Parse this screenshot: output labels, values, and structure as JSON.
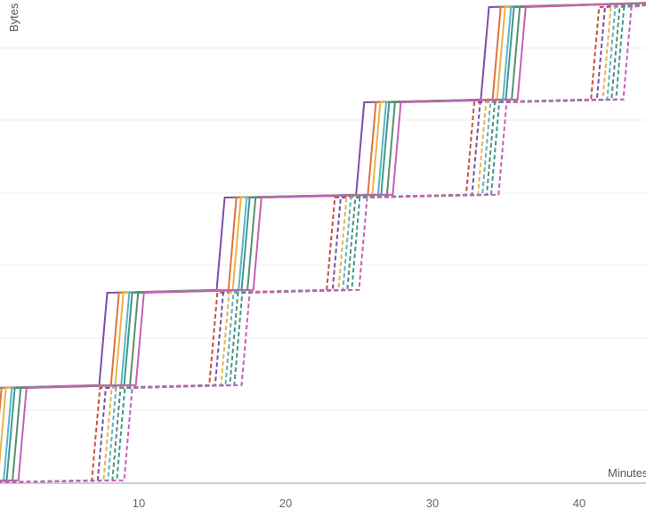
{
  "chart_data": {
    "type": "line",
    "xlabel": "Minutes",
    "ylabel": "Bytes",
    "xticks": [
      10,
      20,
      30,
      40
    ],
    "xlim": [
      0,
      44.5
    ],
    "ylim": [
      0,
      6.7
    ],
    "grid": true,
    "legend": "none",
    "steps": [
      2,
      10,
      18,
      27.5,
      36
    ],
    "series": [
      {
        "color": "#7b4fa8",
        "style": "solid",
        "offset": -2.5
      },
      {
        "color": "#e0723a",
        "style": "solid",
        "offset": -1.7
      },
      {
        "color": "#e8b44a",
        "style": "solid",
        "offset": -1.4
      },
      {
        "color": "#5ab4c6",
        "style": "solid",
        "offset": -1.0
      },
      {
        "color": "#3a9b8f",
        "style": "solid",
        "offset": -0.8
      },
      {
        "color": "#5a8f6e",
        "style": "solid",
        "offset": -0.4
      },
      {
        "color": "#c65fb8",
        "style": "solid",
        "offset": 0.0
      },
      {
        "color": "#c9503f",
        "style": "dashed",
        "offset": 5.0
      },
      {
        "color": "#7b4fa8",
        "style": "dashed",
        "offset": 5.4
      },
      {
        "color": "#e8b44a",
        "style": "dashed",
        "offset": 5.8
      },
      {
        "color": "#5ab4c6",
        "style": "dashed",
        "offset": 6.1
      },
      {
        "color": "#5a8f6e",
        "style": "dashed",
        "offset": 6.4
      },
      {
        "color": "#3a9b8f",
        "style": "dashed",
        "offset": 6.7
      },
      {
        "color": "#c65fb8",
        "style": "dashed",
        "offset": 7.2
      }
    ]
  }
}
